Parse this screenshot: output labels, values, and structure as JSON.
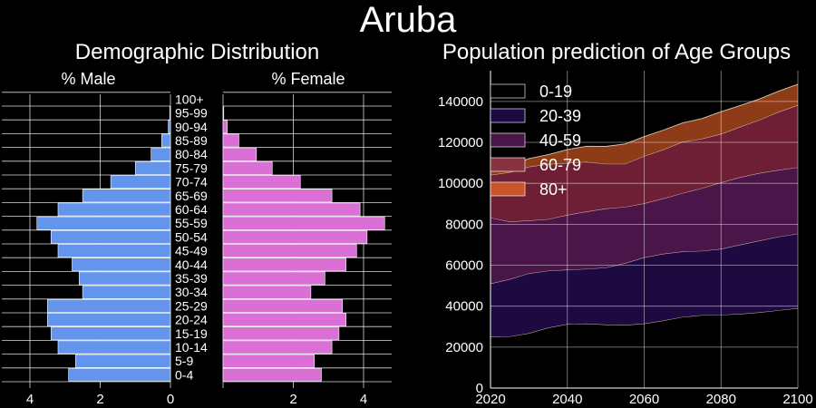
{
  "page": {
    "title": "Aruba",
    "left_title": "Demographic Distribution",
    "right_title": "Population prediction of Age Groups",
    "male_label": "% Male",
    "female_label": "% Female"
  },
  "colors": {
    "background": "#000000",
    "male": "#6495ED",
    "female": "#DA70D6",
    "grid": "#ffffff"
  },
  "chart_data": [
    {
      "type": "bar",
      "name": "population-pyramid",
      "orientation": "horizontal",
      "categories": [
        "0-4",
        "5-9",
        "10-14",
        "15-19",
        "20-24",
        "25-29",
        "30-34",
        "35-39",
        "40-44",
        "45-49",
        "50-54",
        "55-59",
        "60-64",
        "65-69",
        "70-74",
        "75-79",
        "80-84",
        "85-89",
        "90-94",
        "95-99",
        "100+"
      ],
      "series": [
        {
          "name": "% Male",
          "values": [
            2.9,
            2.7,
            3.2,
            3.4,
            3.5,
            3.5,
            2.5,
            2.6,
            2.8,
            3.2,
            3.4,
            3.8,
            3.2,
            2.5,
            1.7,
            1.0,
            0.55,
            0.25,
            0.06,
            0.02,
            0.0
          ]
        },
        {
          "name": "% Female",
          "values": [
            2.8,
            2.6,
            3.1,
            3.3,
            3.5,
            3.4,
            2.5,
            2.9,
            3.5,
            3.8,
            4.1,
            4.6,
            3.9,
            3.1,
            2.2,
            1.4,
            0.95,
            0.45,
            0.12,
            0.02,
            0.0
          ]
        }
      ],
      "xticks": [
        4,
        2,
        0,
        2,
        4
      ],
      "xlim": [
        0,
        4.7
      ]
    },
    {
      "type": "area",
      "name": "population-prediction",
      "stacked": true,
      "x": [
        2020,
        2025,
        2030,
        2035,
        2040,
        2045,
        2050,
        2055,
        2060,
        2065,
        2070,
        2075,
        2080,
        2085,
        2090,
        2095,
        2100
      ],
      "series": [
        {
          "name": "0-19",
          "color": "#000000",
          "values": [
            25000,
            25200,
            26800,
            29500,
            31200,
            31500,
            31000,
            30800,
            31500,
            33000,
            34700,
            35600,
            35800,
            36200,
            37000,
            38000,
            39000
          ]
        },
        {
          "name": "20-39",
          "color": "#1E0A40",
          "values": [
            26000,
            28000,
            29200,
            27800,
            26600,
            26700,
            27800,
            30200,
            32300,
            32600,
            32000,
            31400,
            32200,
            33800,
            35000,
            35900,
            36400
          ]
        },
        {
          "name": "40-59",
          "color": "#4A1548",
          "values": [
            32200,
            28100,
            25800,
            25200,
            26800,
            28000,
            28900,
            27500,
            26400,
            27000,
            28500,
            30600,
            32400,
            33000,
            33000,
            32600,
            32400
          ]
        },
        {
          "name": "60-79",
          "color": "#6E1F36",
          "values": [
            20900,
            24100,
            26300,
            26900,
            25300,
            24300,
            21800,
            21000,
            23100,
            23900,
            25100,
            24200,
            23700,
            24600,
            26000,
            28400,
            30400
          ]
        },
        {
          "name": "80+",
          "color": "#8E3C18",
          "values": [
            1900,
            3100,
            4000,
            4600,
            6600,
            7600,
            8500,
            9700,
            9500,
            9500,
            9200,
            9800,
            10900,
            10400,
            10200,
            10100,
            10200
          ]
        }
      ],
      "xticks": [
        2020,
        2040,
        2060,
        2080,
        2100
      ],
      "yticks": [
        0,
        20000,
        40000,
        60000,
        80000,
        100000,
        120000,
        140000
      ],
      "xlim": [
        2020,
        2100
      ],
      "ylim": [
        0,
        155000
      ],
      "legend_position": "upper-left",
      "grid": true
    }
  ]
}
